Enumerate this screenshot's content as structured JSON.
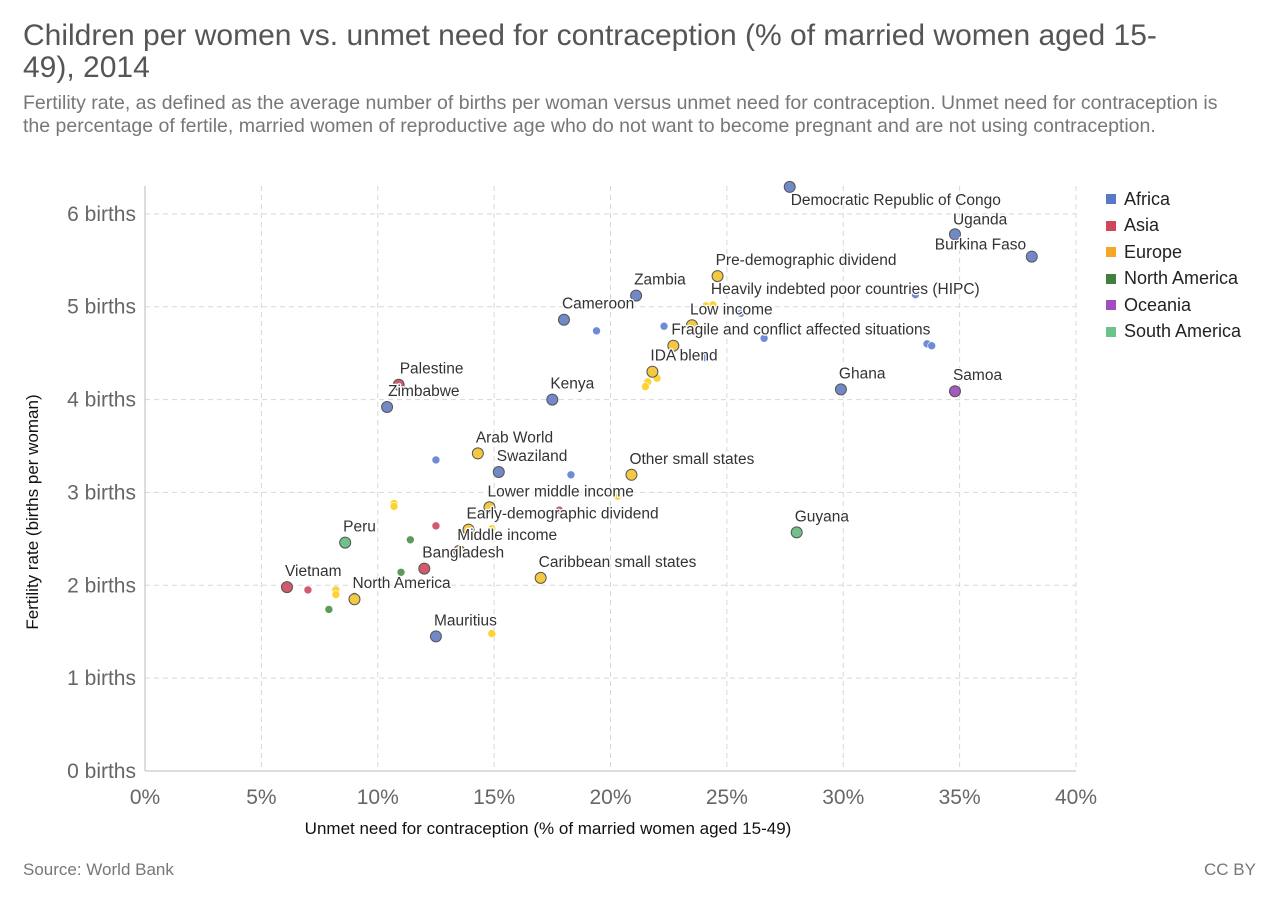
{
  "title": "Children per women vs. unmet need for contraception (% of married women aged 15-49), 2014",
  "subtitle": "Fertility rate, as defined as the average number of births per woman versus unmet need for contraception. Unmet need for contraception is the percentage of fertile, married women of reproductive age who do not want to become pregnant and are not using contraception.",
  "footer": {
    "source": "Source: World Bank",
    "license": "CC BY"
  },
  "legend": [
    {
      "label": "Africa",
      "color": "#5a78c6"
    },
    {
      "label": "Asia",
      "color": "#d0475a"
    },
    {
      "label": "Europe",
      "color": "#f5a623"
    },
    {
      "label": "North America",
      "color": "#3f7f3f"
    },
    {
      "label": "Oceania",
      "color": "#a14fc0"
    },
    {
      "label": "South America",
      "color": "#6cc38a"
    }
  ],
  "chart_data": {
    "type": "scatter",
    "xlabel": "Unmet need for contraception (% of married women aged 15-49)",
    "ylabel": "Fertility rate (births per woman)",
    "xlim": [
      0,
      40
    ],
    "ylim": [
      0,
      6.3
    ],
    "x_ticks": [
      {
        "value": 0,
        "label": "0%"
      },
      {
        "value": 5,
        "label": "5%"
      },
      {
        "value": 10,
        "label": "10%"
      },
      {
        "value": 15,
        "label": "15%"
      },
      {
        "value": 20,
        "label": "20%"
      },
      {
        "value": 25,
        "label": "25%"
      },
      {
        "value": 30,
        "label": "30%"
      },
      {
        "value": 35,
        "label": "35%"
      },
      {
        "value": 40,
        "label": "40%"
      }
    ],
    "y_ticks": [
      {
        "value": 0,
        "label": "0 births"
      },
      {
        "value": 1,
        "label": "1 births"
      },
      {
        "value": 2,
        "label": "2 births"
      },
      {
        "value": 3,
        "label": "3 births"
      },
      {
        "value": 4,
        "label": "4 births"
      },
      {
        "value": 5,
        "label": "5 births"
      },
      {
        "value": 6,
        "label": "6 births"
      }
    ],
    "grid": true,
    "legend_position": "right",
    "points": [
      {
        "x": 27.7,
        "y": 6.29,
        "label": "Democratic Republic of Congo",
        "group": "Africa",
        "big": true
      },
      {
        "x": 34.8,
        "y": 5.78,
        "label": "Uganda",
        "group": "Africa",
        "big": true
      },
      {
        "x": 38.1,
        "y": 5.54,
        "label": "Burkina Faso",
        "group": "Africa",
        "big": true
      },
      {
        "x": 24.6,
        "y": 5.33,
        "label": "Pre-demographic dividend",
        "group": "Europe",
        "big": true
      },
      {
        "x": 21.1,
        "y": 5.12,
        "label": "Zambia",
        "group": "Africa",
        "big": true
      },
      {
        "x": 24.4,
        "y": 5.02,
        "label": "Heavily indebted poor countries (HIPC)",
        "group": "Europe",
        "big": false
      },
      {
        "x": 18.0,
        "y": 4.86,
        "label": "Cameroon",
        "group": "Africa",
        "big": true
      },
      {
        "x": 23.5,
        "y": 4.8,
        "label": "Low income",
        "group": "Europe",
        "big": true
      },
      {
        "x": 22.7,
        "y": 4.58,
        "label": "Fragile and conflict affected situations",
        "group": "Europe",
        "big": true
      },
      {
        "x": 21.8,
        "y": 4.3,
        "label": "IDA blend",
        "group": "Europe",
        "big": true
      },
      {
        "x": 10.9,
        "y": 4.16,
        "label": "Palestine",
        "group": "Asia",
        "big": true
      },
      {
        "x": 29.9,
        "y": 4.11,
        "label": "Ghana",
        "group": "Africa",
        "big": true
      },
      {
        "x": 34.8,
        "y": 4.09,
        "label": "Samoa",
        "group": "Oceania",
        "big": true
      },
      {
        "x": 17.5,
        "y": 4.0,
        "label": "Kenya",
        "group": "Africa",
        "big": true
      },
      {
        "x": 10.4,
        "y": 3.92,
        "label": "Zimbabwe",
        "group": "Africa",
        "big": true
      },
      {
        "x": 14.3,
        "y": 3.42,
        "label": "Arab World",
        "group": "Europe",
        "big": true
      },
      {
        "x": 15.2,
        "y": 3.22,
        "label": "Swaziland",
        "group": "Africa",
        "big": true
      },
      {
        "x": 20.9,
        "y": 3.19,
        "label": "Other small states",
        "group": "Europe",
        "big": true
      },
      {
        "x": 14.8,
        "y": 2.84,
        "label": "Lower middle income",
        "group": "Europe",
        "big": true
      },
      {
        "x": 13.9,
        "y": 2.6,
        "label": "Early-demographic dividend",
        "group": "Europe",
        "big": true
      },
      {
        "x": 28.0,
        "y": 2.57,
        "label": "Guyana",
        "group": "South America",
        "big": true
      },
      {
        "x": 8.6,
        "y": 2.46,
        "label": "Peru",
        "group": "South America",
        "big": true
      },
      {
        "x": 13.5,
        "y": 2.37,
        "label": "Middle income",
        "group": "Europe",
        "big": true
      },
      {
        "x": 12.0,
        "y": 2.18,
        "label": "Bangladesh",
        "group": "Asia",
        "big": true
      },
      {
        "x": 17.0,
        "y": 2.08,
        "label": "Caribbean small states",
        "group": "Europe",
        "big": true
      },
      {
        "x": 6.1,
        "y": 1.98,
        "label": "Vietnam",
        "group": "Asia",
        "big": true
      },
      {
        "x": 9.0,
        "y": 1.85,
        "label": "North America",
        "group": "Europe",
        "big": true
      },
      {
        "x": 12.5,
        "y": 1.45,
        "label": "Mauritius",
        "group": "Africa",
        "big": true
      },
      {
        "x": 14.9,
        "y": 1.48,
        "label": "",
        "group": "Europe",
        "big": false
      },
      {
        "x": 19.4,
        "y": 4.74,
        "label": "",
        "group": "Africa",
        "big": false
      },
      {
        "x": 22.3,
        "y": 4.79,
        "label": "",
        "group": "Africa",
        "big": false
      },
      {
        "x": 24.1,
        "y": 5.01,
        "label": "",
        "group": "Europe",
        "big": false
      },
      {
        "x": 25.6,
        "y": 4.93,
        "label": "",
        "group": "Africa",
        "big": false
      },
      {
        "x": 26.6,
        "y": 4.66,
        "label": "",
        "group": "Africa",
        "big": false
      },
      {
        "x": 33.1,
        "y": 5.13,
        "label": "",
        "group": "Africa",
        "big": false
      },
      {
        "x": 33.6,
        "y": 4.6,
        "label": "",
        "group": "Africa",
        "big": false
      },
      {
        "x": 33.8,
        "y": 4.58,
        "label": "",
        "group": "Africa",
        "big": false
      },
      {
        "x": 24.1,
        "y": 4.45,
        "label": "",
        "group": "Africa",
        "big": false
      },
      {
        "x": 22.0,
        "y": 4.23,
        "label": "",
        "group": "Europe",
        "big": false
      },
      {
        "x": 21.6,
        "y": 4.19,
        "label": "",
        "group": "Europe",
        "big": false
      },
      {
        "x": 21.5,
        "y": 4.14,
        "label": "",
        "group": "Europe",
        "big": false
      },
      {
        "x": 12.5,
        "y": 3.35,
        "label": "",
        "group": "Africa",
        "big": false
      },
      {
        "x": 18.3,
        "y": 3.19,
        "label": "",
        "group": "Africa",
        "big": false
      },
      {
        "x": 20.3,
        "y": 2.96,
        "label": "",
        "group": "Europe",
        "big": false
      },
      {
        "x": 10.7,
        "y": 2.88,
        "label": "",
        "group": "Europe",
        "big": false
      },
      {
        "x": 10.7,
        "y": 2.85,
        "label": "",
        "group": "Europe",
        "big": false
      },
      {
        "x": 17.8,
        "y": 2.81,
        "label": "",
        "group": "Asia",
        "big": false
      },
      {
        "x": 12.5,
        "y": 2.64,
        "label": "",
        "group": "Asia",
        "big": false
      },
      {
        "x": 14.9,
        "y": 2.61,
        "label": "",
        "group": "Europe",
        "big": false
      },
      {
        "x": 13.8,
        "y": 2.55,
        "label": "",
        "group": "Europe",
        "big": false
      },
      {
        "x": 11.4,
        "y": 2.49,
        "label": "",
        "group": "North America",
        "big": false
      },
      {
        "x": 11.0,
        "y": 2.14,
        "label": "",
        "group": "North America",
        "big": false
      },
      {
        "x": 7.0,
        "y": 1.95,
        "label": "",
        "group": "Asia",
        "big": false
      },
      {
        "x": 8.2,
        "y": 1.95,
        "label": "",
        "group": "Europe",
        "big": false
      },
      {
        "x": 8.2,
        "y": 1.9,
        "label": "",
        "group": "Europe",
        "big": false
      },
      {
        "x": 9.0,
        "y": 1.88,
        "label": "",
        "group": "North America",
        "big": false
      },
      {
        "x": 7.9,
        "y": 1.74,
        "label": "",
        "group": "North America",
        "big": false
      }
    ]
  }
}
